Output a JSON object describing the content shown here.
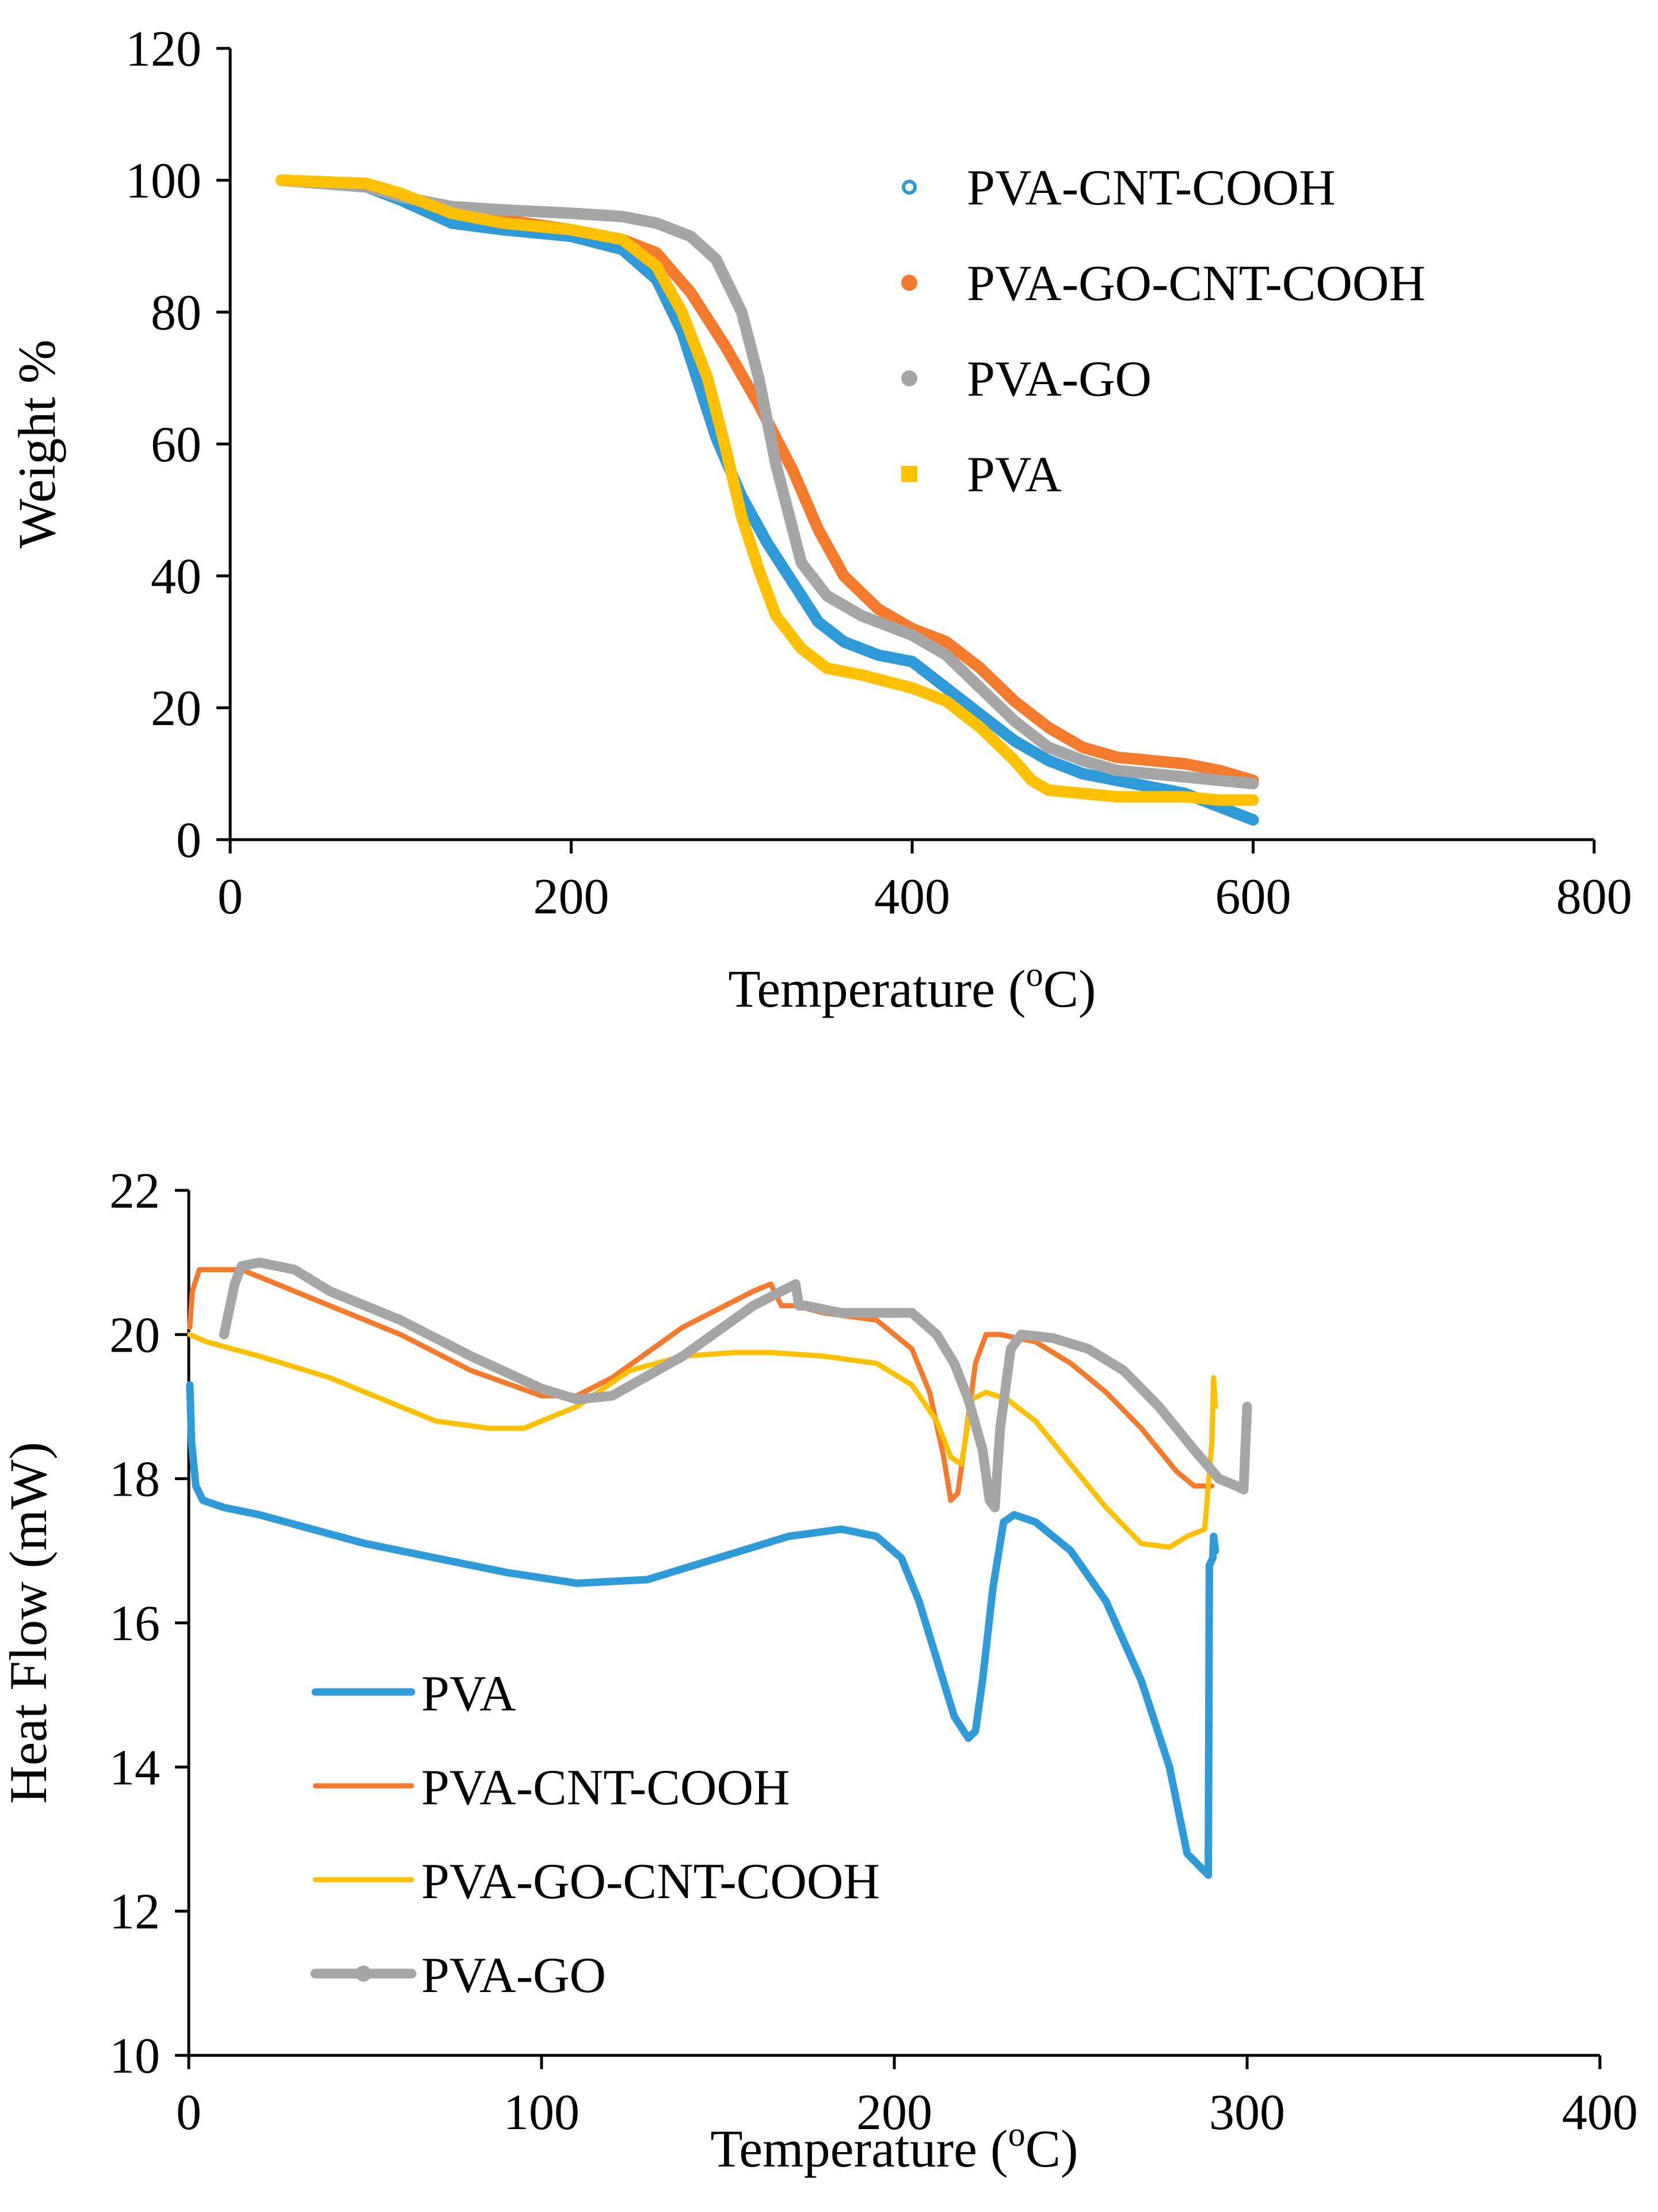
{
  "chart_data": [
    {
      "type": "line",
      "title": "",
      "xlabel": "Temperature (",
      "xlabel_sup": "o",
      "xlabel_end": "C)",
      "ylabel": "Weight %",
      "xlim": [
        0,
        800
      ],
      "ylim": [
        0,
        120
      ],
      "xticks": [
        0,
        200,
        400,
        600,
        800
      ],
      "yticks": [
        0,
        20,
        40,
        60,
        80,
        100,
        120
      ],
      "xtick_labels": [
        "0",
        "200",
        "400",
        "600",
        "800"
      ],
      "ytick_labels": [
        "0",
        "20",
        "40",
        "60",
        "80",
        "100",
        "120"
      ],
      "legend_position": "top-right",
      "grid": false,
      "series": [
        {
          "name": "PVA-CNT-COOH",
          "color": "#2e9ad8",
          "marker": "open-circle",
          "x": [
            30,
            80,
            100,
            130,
            160,
            200,
            230,
            250,
            265,
            275,
            285,
            300,
            315,
            330,
            345,
            360,
            380,
            400,
            420,
            440,
            460,
            480,
            500,
            520,
            540,
            560,
            580,
            600
          ],
          "y": [
            100,
            99,
            97,
            93.5,
            92.5,
            91.5,
            89.5,
            85,
            77,
            69,
            61,
            52,
            45,
            39,
            33,
            30,
            28,
            27,
            23,
            19,
            15,
            12,
            10,
            9,
            8,
            7,
            5,
            3
          ]
        },
        {
          "name": "PVA-GO-CNT-COOH",
          "color": "#f47a2e",
          "marker": "filled-circle",
          "x": [
            30,
            80,
            100,
            130,
            160,
            200,
            230,
            250,
            270,
            290,
            310,
            330,
            345,
            360,
            380,
            400,
            420,
            440,
            460,
            480,
            500,
            520,
            540,
            560,
            580,
            600
          ],
          "y": [
            100,
            99.5,
            98,
            95,
            94,
            92.5,
            91,
            89,
            83,
            75,
            66,
            56,
            47,
            40,
            35,
            32,
            30,
            26,
            21,
            17,
            14,
            12.5,
            12,
            11.5,
            10.5,
            9
          ]
        },
        {
          "name": "PVA-GO",
          "color": "#a6a6a6",
          "marker": "filled-circle",
          "x": [
            30,
            80,
            100,
            130,
            160,
            200,
            230,
            250,
            270,
            285,
            300,
            310,
            320,
            335,
            350,
            370,
            400,
            420,
            440,
            460,
            480,
            500,
            520,
            540,
            560,
            580,
            600
          ],
          "y": [
            100,
            99,
            97.5,
            96,
            95.5,
            95,
            94.5,
            93.5,
            91.5,
            88,
            80,
            70,
            57,
            42,
            37,
            34,
            31,
            28,
            23,
            18,
            14,
            12,
            10.5,
            10,
            9.5,
            9,
            8.5
          ]
        },
        {
          "name": "PVA",
          "color": "#ffc000",
          "marker": "filled-square",
          "x": [
            30,
            80,
            100,
            130,
            160,
            200,
            230,
            250,
            265,
            280,
            290,
            300,
            310,
            320,
            335,
            350,
            370,
            400,
            420,
            440,
            460,
            470,
            480,
            500,
            520,
            540,
            560,
            580,
            600
          ],
          "y": [
            100,
            99.5,
            98,
            95,
            93.5,
            92.5,
            91,
            87,
            80,
            70,
            60,
            49,
            41,
            34,
            29,
            26,
            25,
            23,
            21,
            17,
            12,
            9,
            7.5,
            7,
            6.5,
            6.5,
            6.5,
            6,
            6
          ]
        }
      ]
    },
    {
      "type": "line",
      "title": "",
      "xlabel": "Temperature (",
      "xlabel_sup": "o",
      "xlabel_end": "C)",
      "ylabel": "Heat Flow (mW)",
      "xlim": [
        0,
        400
      ],
      "ylim": [
        10,
        22
      ],
      "xticks": [
        0,
        100,
        200,
        300,
        400
      ],
      "yticks": [
        10,
        12,
        14,
        16,
        18,
        20,
        22
      ],
      "xtick_labels": [
        "0",
        "100",
        "200",
        "300",
        "400"
      ],
      "ytick_labels": [
        "10",
        "12",
        "14",
        "16",
        "18",
        "20",
        "22"
      ],
      "legend_position": "bottom-left",
      "grid": false,
      "series": [
        {
          "name": "PVA",
          "color": "#2e9ad8",
          "marker": "none",
          "x": [
            0.3,
            0.8,
            2,
            4,
            10,
            20,
            35,
            50,
            70,
            90,
            110,
            130,
            150,
            170,
            185,
            195,
            202,
            207,
            212,
            217,
            221,
            223,
            225,
            228,
            231,
            234,
            240,
            250,
            260,
            270,
            278,
            283,
            287,
            289,
            289.3,
            290.3,
            290.5,
            291
          ],
          "y": [
            19.3,
            18.5,
            17.9,
            17.7,
            17.6,
            17.5,
            17.3,
            17.1,
            16.9,
            16.7,
            16.55,
            16.6,
            16.9,
            17.2,
            17.3,
            17.2,
            16.9,
            16.3,
            15.5,
            14.7,
            14.4,
            14.5,
            15.2,
            16.5,
            17.4,
            17.5,
            17.4,
            17.0,
            16.3,
            15.2,
            14.0,
            12.8,
            12.6,
            12.5,
            16.8,
            16.9,
            17.2,
            17.0
          ]
        },
        {
          "name": "PVA-CNT-COOH",
          "color": "#f47a2e",
          "marker": "none",
          "x": [
            0.3,
            1,
            3,
            8,
            15,
            25,
            40,
            60,
            80,
            100,
            110,
            120,
            140,
            160,
            165,
            168,
            172,
            180,
            195,
            205,
            210,
            214,
            216,
            218,
            220,
            223,
            226,
            230,
            240,
            250,
            260,
            270,
            280,
            285,
            290
          ],
          "y": [
            20.1,
            20.6,
            20.9,
            20.9,
            20.9,
            20.7,
            20.4,
            20.0,
            19.5,
            19.15,
            19.15,
            19.4,
            20.1,
            20.6,
            20.7,
            20.4,
            20.4,
            20.3,
            20.2,
            19.8,
            19.2,
            18.3,
            17.7,
            17.8,
            18.5,
            19.6,
            20.0,
            20.0,
            19.9,
            19.6,
            19.2,
            18.7,
            18.1,
            17.9,
            17.9
          ]
        },
        {
          "name": "PVA-GO-CNT-COOH",
          "color": "#ffc000",
          "marker": "none",
          "x": [
            0.3,
            5,
            20,
            40,
            55,
            70,
            85,
            95,
            110,
            125,
            140,
            155,
            165,
            180,
            195,
            205,
            212,
            216,
            219,
            222,
            226,
            232,
            240,
            250,
            260,
            270,
            278,
            283,
            288,
            290,
            290.5,
            291
          ],
          "y": [
            20.0,
            19.9,
            19.7,
            19.4,
            19.1,
            18.8,
            18.7,
            18.7,
            19.0,
            19.5,
            19.7,
            19.75,
            19.75,
            19.7,
            19.6,
            19.3,
            18.8,
            18.3,
            18.2,
            19.1,
            19.2,
            19.1,
            18.8,
            18.2,
            17.6,
            17.1,
            17.05,
            17.2,
            17.3,
            18.5,
            19.4,
            19.0
          ]
        },
        {
          "name": "PVA-GO",
          "color": "#a6a6a6",
          "marker": "filled-circle",
          "x": [
            10,
            13,
            15,
            20,
            30,
            40,
            60,
            80,
            100,
            110,
            120,
            140,
            160,
            172,
            173,
            175,
            185,
            195,
            205,
            212,
            217,
            221,
            225,
            227,
            228.5,
            230,
            233,
            236,
            245,
            255,
            265,
            275,
            285,
            292,
            297,
            299,
            300
          ],
          "y": [
            20.0,
            20.7,
            20.95,
            21.0,
            20.9,
            20.6,
            20.2,
            19.7,
            19.25,
            19.1,
            19.15,
            19.7,
            20.4,
            20.7,
            20.4,
            20.4,
            20.3,
            20.3,
            20.3,
            20.0,
            19.6,
            19.1,
            18.4,
            17.7,
            17.6,
            18.7,
            19.8,
            20.0,
            19.95,
            19.8,
            19.5,
            19.0,
            18.4,
            18.0,
            17.9,
            17.85,
            19.0
          ]
        }
      ]
    }
  ]
}
